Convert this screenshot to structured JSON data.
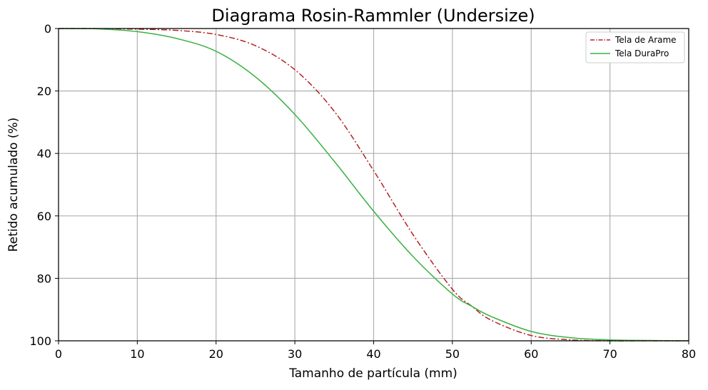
{
  "chart_data": {
    "type": "line",
    "title": "Diagrama Rosin-Rammler (Undersize)",
    "xlabel": "Tamanho de partícula (mm)",
    "ylabel": "Retido acumulado (%)",
    "xlim": [
      0,
      80
    ],
    "ylim": [
      0,
      100
    ],
    "y_inverted": true,
    "xticks": [
      0,
      10,
      20,
      30,
      40,
      50,
      60,
      70,
      80
    ],
    "yticks": [
      0,
      20,
      40,
      60,
      80,
      100
    ],
    "grid": true,
    "legend_position": "top-right",
    "x": [
      0,
      5,
      10,
      15,
      20,
      25,
      30,
      35,
      40,
      45,
      50,
      52.5,
      55,
      60,
      65,
      70,
      75,
      80
    ],
    "series": [
      {
        "name": "Tela de Arame",
        "color": "#b22222",
        "line_style": "dash-dot",
        "values": [
          0,
          0.02,
          0.2,
          0.6,
          1.9,
          5.5,
          13.2,
          26.5,
          45.5,
          66,
          83.5,
          89,
          93.5,
          98.3,
          99.7,
          100,
          100,
          100
        ]
      },
      {
        "name": "Tela DuraPro",
        "color": "#3cb043",
        "line_style": "solid",
        "values": [
          0,
          0.1,
          1.0,
          3.2,
          7.3,
          15.5,
          27.5,
          42.5,
          58.5,
          73,
          85,
          89,
          92.3,
          97,
          99,
          99.7,
          99.9,
          100
        ]
      }
    ]
  }
}
